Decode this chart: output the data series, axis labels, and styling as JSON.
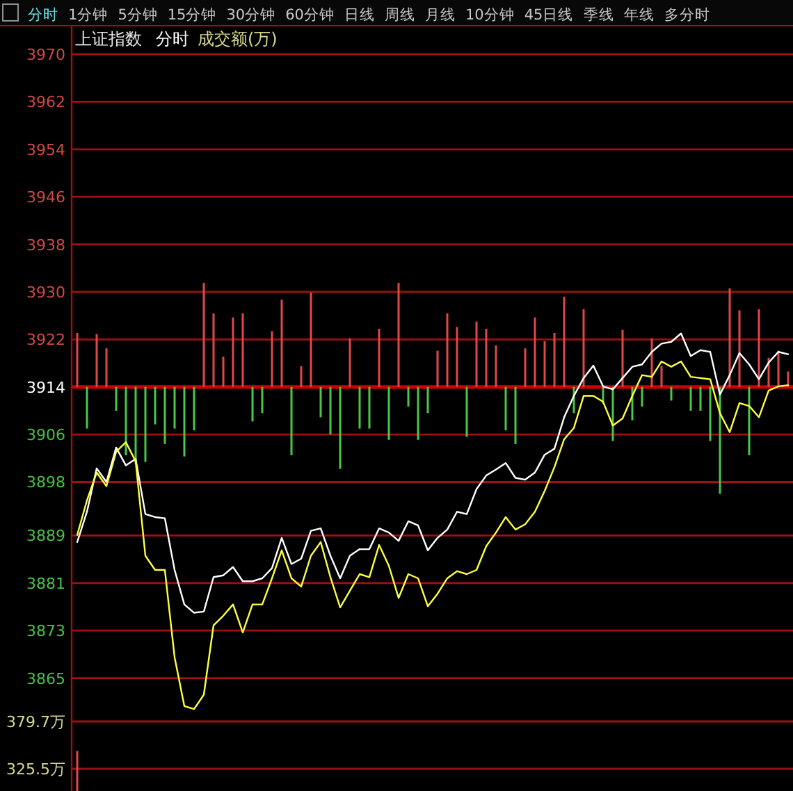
{
  "chart_data": [
    {
      "type": "line",
      "title": "上证指数",
      "subtitle": "分时",
      "annotations": [
        "分时",
        "1分钟",
        "5分钟",
        "15分钟",
        "30分钟",
        "60分钟",
        "日线",
        "周线",
        "月线",
        "10分钟",
        "45日线",
        "季线",
        "年线",
        "多分时",
        "成交额(万)"
      ],
      "categories": [
        null,
        null,
        null,
        null,
        null,
        null,
        null,
        null,
        null,
        null,
        null,
        null,
        null,
        null,
        null,
        null,
        null,
        null,
        null,
        null,
        null,
        null,
        null,
        null,
        null,
        null,
        null,
        null,
        null,
        null,
        null,
        null,
        null,
        null,
        null,
        null,
        null,
        null,
        null,
        null,
        null,
        null,
        null,
        null,
        null,
        null,
        null,
        null,
        null,
        null,
        null,
        null,
        null,
        null,
        null,
        null,
        null,
        null,
        null,
        null,
        null,
        null,
        null,
        null,
        null,
        null,
        null,
        null,
        null,
        null,
        null,
        null,
        null,
        null
      ],
      "ylim": [
        3857.7,
        3970
      ],
      "yticks": [
        3970,
        3962,
        3954,
        3946,
        3938,
        3930,
        3922,
        3914,
        3906,
        3898,
        3889,
        3881,
        3873,
        3865
      ],
      "grid": "y",
      "tick_labels": "y",
      "ref_lines": [
        {
          "axis": "y",
          "value": 3914,
          "color": "#d00000"
        }
      ],
      "series": [
        {
          "type": "bar",
          "values": [
            9.1,
            -7.0,
            8.9,
            6.5,
            -4.0,
            -11.5,
            -12.9,
            -12.6,
            -6.3,
            -9.6,
            -7.0,
            -11.7,
            -7.3,
            17.5,
            12.4,
            5.1,
            11.7,
            12.4,
            -5.8,
            -4.4,
            9.4,
            14.7,
            -11.5,
            3.5,
            15.9,
            -5.1,
            -8.0,
            -13.8,
            8.2,
            -7.0,
            -7.0,
            9.8,
            -8.9,
            17.5,
            -3.3,
            -8.9,
            -4.4,
            6.1,
            12.4,
            10.1,
            -8.4,
            11.0,
            9.8,
            7.0,
            -7.3,
            -9.6,
            6.5,
            11.7,
            7.7,
            9.1,
            15.2,
            -4.4,
            13.1,
            null,
            -2.8,
            -9.1,
            9.6,
            -5.6,
            -3.3,
            8.2,
            3.5,
            -2.3,
            null,
            -4.0,
            -4.0,
            -9.1,
            -18.0,
            16.6,
            12.9,
            -11.5,
            13.1,
            4.9,
            6.1,
            2.6
          ],
          "base": [
            3914,
            3914,
            3914,
            3914,
            3914,
            3914,
            3914,
            3914,
            3914,
            3914,
            3914,
            3914,
            3914,
            3914,
            3914,
            3914,
            3914,
            3914,
            3914,
            3914,
            3914,
            3914,
            3914,
            3914,
            3914,
            3914,
            3914,
            3914,
            3914,
            3914,
            3914,
            3914,
            3914,
            3914,
            3914,
            3914,
            3914,
            3914,
            3914,
            3914,
            3914,
            3914,
            3914,
            3914,
            3914,
            3914,
            3914,
            3914,
            3914,
            3914,
            3914,
            3914,
            3914,
            null,
            3914,
            3914,
            3914,
            3914,
            3914,
            3914,
            3914,
            3914,
            null,
            3914,
            3914,
            3914,
            3914,
            3914,
            3914,
            3914,
            3914,
            3914,
            3914,
            3914
          ],
          "colors": [
            "#e04848",
            "#48c848",
            "#e04848",
            "#e04848",
            "#48c848",
            "#48c848",
            "#48c848",
            "#48c848",
            "#48c848",
            "#48c848",
            "#48c848",
            "#48c848",
            "#48c848",
            "#e04848",
            "#e04848",
            "#e04848",
            "#e04848",
            "#e04848",
            "#48c848",
            "#48c848",
            "#e04848",
            "#e04848",
            "#48c848",
            "#e04848",
            "#e04848",
            "#48c848",
            "#48c848",
            "#48c848",
            "#e04848",
            "#48c848",
            "#48c848",
            "#e04848",
            "#48c848",
            "#e04848",
            "#48c848",
            "#48c848",
            "#48c848",
            "#e04848",
            "#e04848",
            "#e04848",
            "#48c848",
            "#e04848",
            "#e04848",
            "#e04848",
            "#48c848",
            "#48c848",
            "#e04848",
            "#e04848",
            "#e04848",
            "#e04848",
            "#e04848",
            "#48c848",
            "#e04848",
            null,
            "#48c848",
            "#48c848",
            "#e04848",
            "#48c848",
            "#48c848",
            "#e04848",
            "#e04848",
            "#48c848",
            null,
            "#48c848",
            "#48c848",
            "#48c848",
            "#48c848",
            "#e04848",
            "#e04848",
            "#48c848",
            "#e04848",
            "#e04848",
            "#e04848",
            "#e04848"
          ]
        },
        {
          "type": "line",
          "color": "#ffffff",
          "values": [
            3887.9,
            3893.0,
            3900.3,
            3898.0,
            3903.8,
            3900.8,
            3901.9,
            3892.6,
            3892.1,
            3891.9,
            3883.2,
            3877.4,
            3876.0,
            3876.2,
            3882.0,
            3882.3,
            3883.7,
            3881.3,
            3881.3,
            3881.8,
            3883.5,
            3888.6,
            3884.2,
            3885.1,
            3889.8,
            3890.2,
            3885.6,
            3881.8,
            3885.6,
            3886.7,
            3886.7,
            3890.2,
            3889.5,
            3888.1,
            3891.4,
            3890.7,
            3886.5,
            3888.6,
            3890.0,
            3893.0,
            3892.6,
            3896.8,
            3899.1,
            3900.1,
            3901.2,
            3898.7,
            3898.4,
            3899.6,
            3902.6,
            3903.6,
            3908.9,
            3912.5,
            3915.5,
            3917.6,
            3914.1,
            3913.6,
            3915.5,
            3917.4,
            3917.8,
            3919.9,
            3921.3,
            3921.6,
            3923.0,
            3919.2,
            3920.2,
            3919.9,
            3912.7,
            3916.0,
            3919.7,
            3917.8,
            3915.3,
            3918.1,
            3919.9,
            3919.5
          ]
        },
        {
          "type": "line",
          "color": "#ffff40",
          "values": [
            3889.1,
            3894.9,
            3899.6,
            3897.3,
            3903.1,
            3904.7,
            3901.5,
            3885.6,
            3883.2,
            3883.2,
            3868.5,
            3860.3,
            3859.8,
            3862.2,
            3873.9,
            3875.5,
            3877.4,
            3872.7,
            3877.4,
            3877.4,
            3881.8,
            3886.5,
            3881.8,
            3880.4,
            3885.6,
            3887.9,
            3882.0,
            3876.9,
            3879.7,
            3882.5,
            3882.0,
            3887.4,
            3883.9,
            3878.5,
            3882.5,
            3881.8,
            3877.1,
            3879.2,
            3881.8,
            3883.0,
            3882.5,
            3883.2,
            3887.2,
            3889.5,
            3892.1,
            3890.0,
            3890.9,
            3893.0,
            3896.5,
            3900.5,
            3905.2,
            3907.1,
            3912.5,
            3912.5,
            3911.5,
            3907.5,
            3908.7,
            3912.5,
            3916.0,
            3915.7,
            3918.3,
            3917.4,
            3918.3,
            3915.7,
            3915.5,
            3915.3,
            3909.6,
            3906.4,
            3911.3,
            3910.8,
            3908.9,
            3913.4,
            3914.1,
            3914.3
          ]
        }
      ]
    },
    {
      "type": "bar",
      "categories": [
        null,
        null,
        null,
        null,
        null,
        null,
        null,
        null,
        null,
        null,
        null,
        null,
        null,
        null,
        null,
        null,
        null,
        null,
        null,
        null,
        null,
        null,
        null,
        null,
        null,
        null,
        null,
        null,
        null,
        null,
        null,
        null,
        null,
        null,
        null,
        null,
        null,
        null,
        null,
        null,
        null,
        null,
        null,
        null,
        null,
        null,
        null,
        null,
        null,
        null,
        null,
        null,
        null,
        null,
        null,
        null,
        null,
        null,
        null,
        null,
        null,
        null,
        null,
        null,
        null,
        null,
        null,
        null,
        null,
        null,
        null,
        null,
        null,
        null
      ],
      "base": [
        300,
        null,
        null,
        null,
        null,
        null,
        null,
        null,
        null,
        null,
        null,
        null,
        null,
        null,
        null,
        null,
        null,
        null,
        null,
        null,
        null,
        null,
        null,
        null,
        null,
        null,
        null,
        null,
        null,
        null,
        null,
        null,
        null,
        null,
        null,
        null,
        null,
        null,
        null,
        null,
        null,
        null,
        null,
        null,
        null,
        null,
        null,
        null,
        null,
        null,
        null,
        null,
        null,
        null,
        null,
        null,
        null,
        null,
        null,
        null,
        null,
        null,
        null,
        null,
        null,
        null,
        null,
        null,
        null,
        null,
        null,
        null,
        null,
        null
      ],
      "values": [
        46,
        null,
        null,
        null,
        null,
        null,
        null,
        null,
        null,
        null,
        null,
        null,
        null,
        null,
        null,
        null,
        null,
        null,
        null,
        null,
        null,
        null,
        null,
        null,
        null,
        null,
        null,
        null,
        null,
        null,
        null,
        null,
        null,
        null,
        null,
        null,
        null,
        null,
        null,
        null,
        null,
        null,
        null,
        null,
        null,
        null,
        null,
        null,
        null,
        null,
        null,
        null,
        null,
        null,
        null,
        null,
        null,
        null,
        null,
        null,
        null,
        null,
        null,
        null,
        null,
        null,
        null,
        null,
        null,
        null,
        null,
        null,
        null,
        null
      ],
      "color": "#e04848",
      "ylim": [
        300,
        379.7
      ],
      "yticks": [
        {
          "value": 379.7,
          "label": "379.7万"
        },
        {
          "value": 325.5,
          "label": "325.5万"
        }
      ],
      "ref_lines": [
        {
          "axis": "y",
          "value": 379.7
        },
        {
          "axis": "y",
          "value": 325.5
        }
      ],
      "tick_labels": "y"
    }
  ]
}
